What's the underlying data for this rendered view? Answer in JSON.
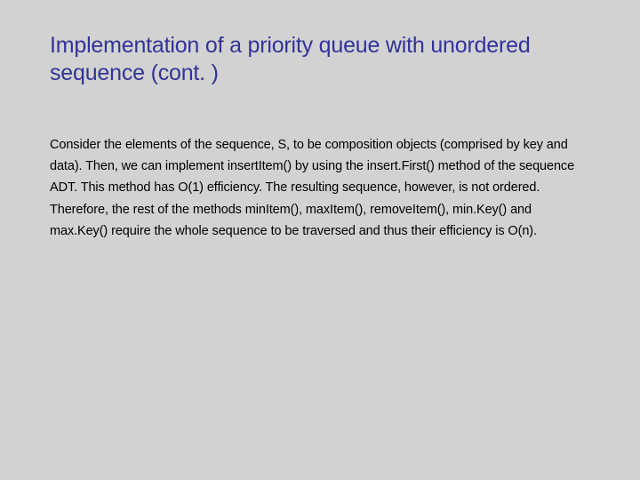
{
  "slide": {
    "title": "Implementation of a priority queue with unordered sequence (cont. )",
    "body": "Consider the elements of the sequence, S, to be composition objects (comprised by key and data).  Then, we can implement insertItem() by using the insert.First() method of the sequence ADT. This method has O(1) efficiency. The resulting sequence, however, is not ordered. Therefore, the rest of the methods minItem(), maxItem(), removeItem(), min.Key() and max.Key() require the whole sequence to be traversed and thus their efficiency is O(n)."
  },
  "colors": {
    "background": "#d2d2d2",
    "title_color": "#333399",
    "body_color": "#000000"
  },
  "typography": {
    "title_fontsize": 25,
    "body_fontsize": 14.5,
    "font_family": "Arial"
  }
}
